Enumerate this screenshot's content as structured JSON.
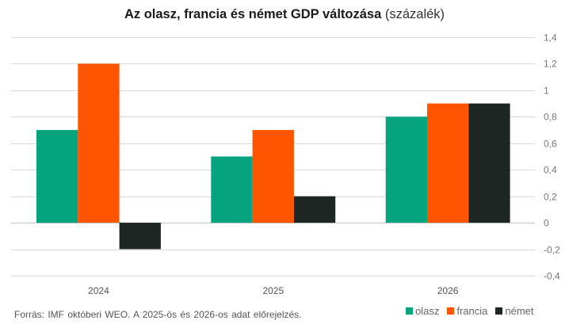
{
  "title": {
    "bold": "Az olasz, francia és német GDP változása",
    "light": "(százalék)"
  },
  "source": "Forrás: IMF októberi  WEO. A 2025-ös és 2026-os adat előrejelzés.",
  "chart_data": {
    "type": "bar",
    "title": "Az olasz, francia és német GDP változása (százalék)",
    "xlabel": "",
    "ylabel": "",
    "categories": [
      "2024",
      "2025",
      "2026"
    ],
    "series": [
      {
        "name": "olasz",
        "color": "#06a37f",
        "values": [
          0.7,
          0.5,
          0.8
        ]
      },
      {
        "name": "francia",
        "color": "#ff5500",
        "values": [
          1.2,
          0.7,
          0.9
        ]
      },
      {
        "name": "német",
        "color": "#1e2624",
        "values": [
          -0.2,
          0.2,
          0.9
        ]
      }
    ],
    "ylim": [
      -0.4,
      1.4
    ],
    "yticks": [
      -0.4,
      -0.2,
      0,
      0.2,
      0.4,
      0.6,
      0.8,
      1,
      1.2,
      1.4
    ],
    "ytick_labels": [
      "-0,4",
      "-0,2",
      "0",
      "0,2",
      "0,4",
      "0,6",
      "0,8",
      "1",
      "1,2",
      "1,4"
    ],
    "y_axis_side": "right",
    "grid": true,
    "legend_position": "bottom-right"
  }
}
